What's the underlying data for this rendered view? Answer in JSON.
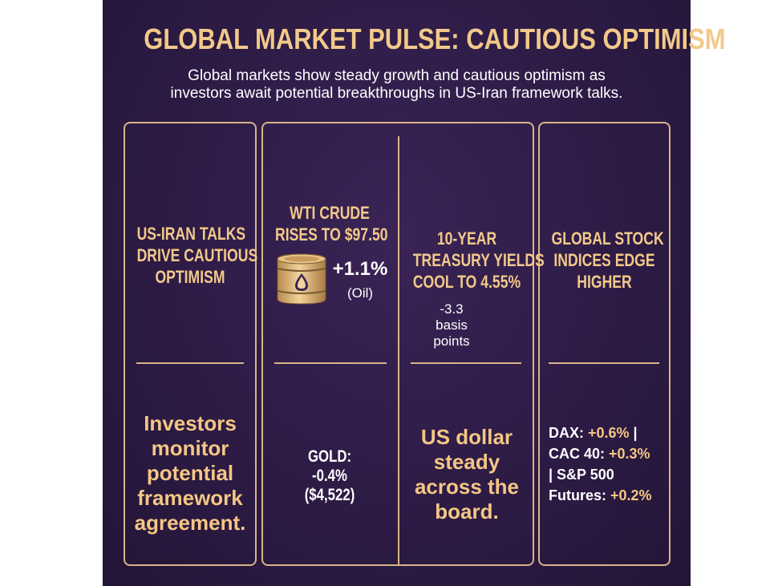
{
  "title": "GLOBAL MARKET PULSE: CAUTIOUS OPTIMISM",
  "subtitle": {
    "line1": "Global markets show steady growth and cautious optimism as",
    "line2": "investors await potential breakthroughs in US-Iran framework talks."
  },
  "columns": [
    {
      "heading": [
        "US-IRAN TALKS",
        "DRIVE CAUTIOUS",
        "OPTIMISM"
      ],
      "body": [
        "Investors",
        "monitor",
        "potential",
        "framework",
        "agreement."
      ]
    },
    {
      "heading": [
        "WTI CRUDE",
        "RISES TO $97.50"
      ],
      "change": "+1.1%",
      "change_label": "(Oil)",
      "icon": "oil-barrel-icon",
      "body": [
        "GOLD:",
        "-0.4%",
        "($4,522)"
      ]
    },
    {
      "heading": [
        "10-YEAR",
        "TREASURY YIELDS",
        "COOL TO 4.55%"
      ],
      "change": [
        "-3.3",
        "basis",
        "points"
      ],
      "body": [
        "US dollar",
        "steady",
        "across the",
        "board."
      ]
    },
    {
      "heading": [
        "GLOBAL STOCK",
        "INDICES EDGE",
        "HIGHER"
      ],
      "body": {
        "dax_label": "DAX: ",
        "dax_value": "+0.6%",
        "sep1": " |",
        "cac_label": "CAC 40: ",
        "cac_value": "+0.3%",
        "sep2": "| S&P 500",
        "fut_label": "Futures: ",
        "fut_value": "+0.2%"
      }
    }
  ],
  "colors": {
    "background": "#2d1b45",
    "accent": "#f2c98a",
    "border": "#d8b48a",
    "text": "#ffffff"
  }
}
